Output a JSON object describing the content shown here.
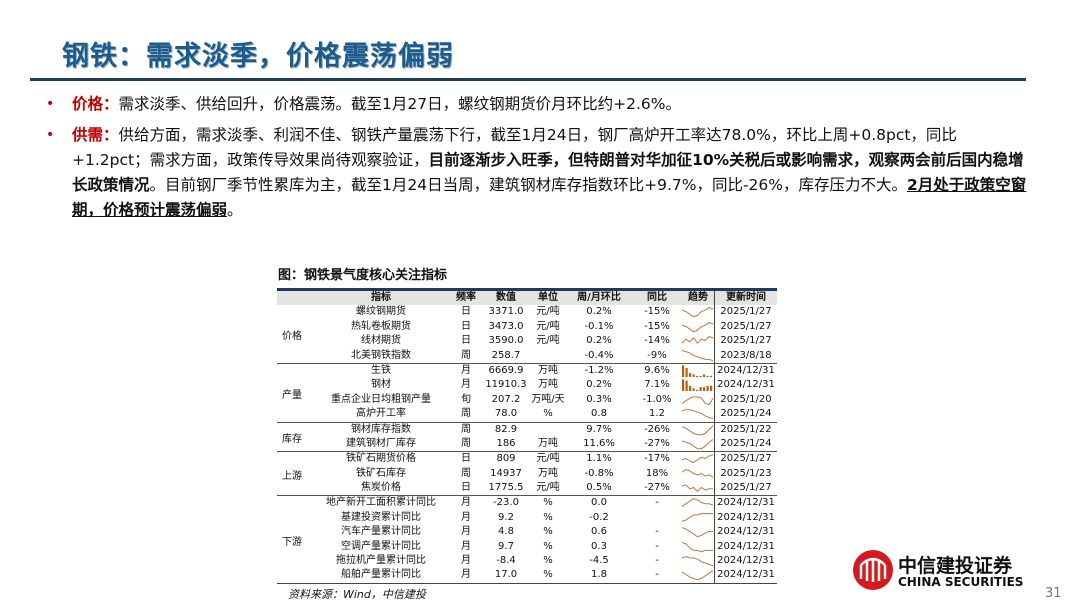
{
  "title": "钢铁：需求淡季，价格震荡偏弱",
  "bullets": [
    {
      "label": "价格：",
      "segments": [
        {
          "t": "需求淡季、供给回升，价格震荡。截至1月27日，螺纹钢期货价月环比约+2.6%。",
          "s": ""
        }
      ]
    },
    {
      "label": "供需：",
      "segments": [
        {
          "t": "供给方面，需求淡季、利润不佳、钢铁产量震荡下行，截至1月24日，钢厂高炉开工率达78.0%，环比上周+0.8pct，同比+1.2pct；需求方面，政策传导效果尚待观察验证，",
          "s": ""
        },
        {
          "t": "目前逐渐步入旺季，但特朗普对华加征10%关税后或影响需求，观察两会前后国内稳增长政策情况",
          "s": "b"
        },
        {
          "t": "。目前钢厂季节性累库为主，截至1月24日当周，建筑钢材库存指数环比+9.7%，同比-26%，库存压力不大。",
          "s": ""
        },
        {
          "t": "2月处于政策空窗期，价格预计震荡偏弱",
          "s": "u"
        },
        {
          "t": "。",
          "s": ""
        }
      ]
    }
  ],
  "figure_title": "图：钢铁景气度核心关注指标",
  "table": {
    "headers": [
      "指标",
      "频率",
      "数值",
      "单位",
      "周/月环比",
      "同比",
      "趋势",
      "更新时间"
    ],
    "groups": [
      {
        "name": "价格",
        "rows": [
          [
            "螺纹钢期货",
            "日",
            "3371.0",
            "元/吨",
            "0.2%",
            "-15%",
            "2025/1/27"
          ],
          [
            "热轧卷板期货",
            "日",
            "3473.0",
            "元/吨",
            "-0.1%",
            "-15%",
            "2025/1/27"
          ],
          [
            "线材期货",
            "日",
            "3590.0",
            "元/吨",
            "0.2%",
            "-14%",
            "2025/1/27"
          ],
          [
            "北美钢铁指数",
            "周",
            "258.7",
            "",
            "-0.4%",
            "-9%",
            "2023/8/18"
          ]
        ]
      },
      {
        "name": "产量",
        "rows": [
          [
            "生铁",
            "月",
            "6669.9",
            "万吨",
            "-1.2%",
            "9.6%",
            "2024/12/31"
          ],
          [
            "钢材",
            "月",
            "11910.3",
            "万吨",
            "0.2%",
            "7.1%",
            "2024/12/31"
          ],
          [
            "重点企业日均粗钢产量",
            "旬",
            "207.2",
            "万吨/天",
            "0.3%",
            "-1.0%",
            "2025/1/20"
          ],
          [
            "高炉开工率",
            "周",
            "78.0",
            "%",
            "0.8",
            "1.2",
            "2025/1/24"
          ]
        ]
      },
      {
        "name": "库存",
        "rows": [
          [
            "钢材库存指数",
            "周",
            "82.9",
            "",
            "9.7%",
            "-26%",
            "2025/1/22"
          ],
          [
            "建筑钢材厂库存",
            "周",
            "186",
            "万吨",
            "11.6%",
            "-27%",
            "2025/1/24"
          ]
        ]
      },
      {
        "name": "上游",
        "rows": [
          [
            "铁矿石期货价格",
            "日",
            "809",
            "元/吨",
            "1.1%",
            "-17%",
            "2025/1/27"
          ],
          [
            "铁矿石库存",
            "周",
            "14937",
            "万吨",
            "-0.8%",
            "18%",
            "2025/1/23"
          ],
          [
            "焦炭价格",
            "日",
            "1775.5",
            "元/吨",
            "0.5%",
            "-27%",
            "2025/1/27"
          ]
        ]
      },
      {
        "name": "下游",
        "rows": [
          [
            "地产新开工面积累计同比",
            "月",
            "-23.0",
            "%",
            "0.0",
            "-",
            "2024/12/31"
          ],
          [
            "基建投资累计同比",
            "月",
            "9.2",
            "%",
            "-0.2",
            "",
            "2024/12/31"
          ],
          [
            "汽车产量累计同比",
            "月",
            "4.8",
            "%",
            "0.6",
            "-",
            "2024/12/31"
          ],
          [
            "空调产量累计同比",
            "月",
            "9.7",
            "%",
            "0.3",
            "-",
            "2024/12/31"
          ],
          [
            "拖拉机产量累计同比",
            "月",
            "-8.4",
            "%",
            "-4.5",
            "-",
            "2024/12/31"
          ],
          [
            "船舶产量累计同比",
            "月",
            "17.0",
            "%",
            "1.8",
            "-",
            "2024/12/31"
          ]
        ]
      }
    ],
    "trend_color": "#c0783a",
    "bar_color": "#b8600a",
    "trends": [
      {
        "type": "line",
        "v": [
          6,
          5,
          3,
          1,
          2,
          5,
          6,
          8,
          7
        ]
      },
      {
        "type": "line",
        "v": [
          6,
          5,
          3,
          1,
          2,
          5,
          6,
          8,
          7
        ]
      },
      {
        "type": "line",
        "v": [
          3,
          6,
          4,
          7,
          3,
          6,
          5,
          8,
          7
        ]
      },
      {
        "type": "line",
        "v": [
          9,
          8,
          7,
          5,
          4,
          3,
          2,
          2,
          1
        ]
      },
      {
        "type": "bar",
        "v": [
          9,
          7,
          3,
          2,
          0,
          0,
          2,
          0,
          1
        ]
      },
      {
        "type": "bar",
        "v": [
          9,
          8,
          4,
          2,
          0,
          3,
          3,
          4,
          4
        ]
      },
      {
        "type": "line",
        "v": [
          2,
          4,
          6,
          7,
          7,
          6,
          2,
          1,
          6
        ]
      },
      {
        "type": "line",
        "v": [
          7,
          8,
          8,
          7,
          6,
          5,
          3,
          2,
          1
        ]
      },
      {
        "type": "line",
        "v": [
          7,
          6,
          4,
          2,
          1,
          1,
          2,
          5,
          8
        ]
      },
      {
        "type": "line",
        "v": [
          7,
          6,
          5,
          3,
          1,
          1,
          3,
          6,
          8
        ]
      },
      {
        "type": "line",
        "v": [
          4,
          5,
          3,
          2,
          4,
          6,
          5,
          7,
          8
        ]
      },
      {
        "type": "line",
        "v": [
          6,
          8,
          7,
          5,
          4,
          5,
          3,
          4,
          2
        ]
      },
      {
        "type": "line",
        "v": [
          6,
          7,
          4,
          5,
          2,
          5,
          3,
          4,
          4
        ]
      },
      {
        "type": "line",
        "v": [
          2,
          4,
          6,
          8,
          7,
          5,
          4,
          4,
          3
        ]
      },
      {
        "type": "line",
        "v": [
          2,
          3,
          5,
          7,
          7,
          8,
          8,
          8,
          8
        ]
      },
      {
        "type": "line",
        "v": [
          8,
          7,
          5,
          3,
          1,
          2,
          4,
          5,
          5
        ]
      },
      {
        "type": "line",
        "v": [
          8,
          7,
          4,
          2,
          2,
          1,
          2,
          2,
          2
        ]
      },
      {
        "type": "line",
        "v": [
          7,
          8,
          7,
          7,
          6,
          4,
          3,
          2,
          1
        ]
      },
      {
        "type": "line",
        "v": [
          7,
          5,
          3,
          2,
          1,
          2,
          4,
          6,
          8
        ]
      }
    ]
  },
  "source": "资料来源：Wind，中信建投",
  "logo": {
    "cn": "中信建投证券",
    "en": "CHINA SECURITIES"
  },
  "page_number": "31"
}
